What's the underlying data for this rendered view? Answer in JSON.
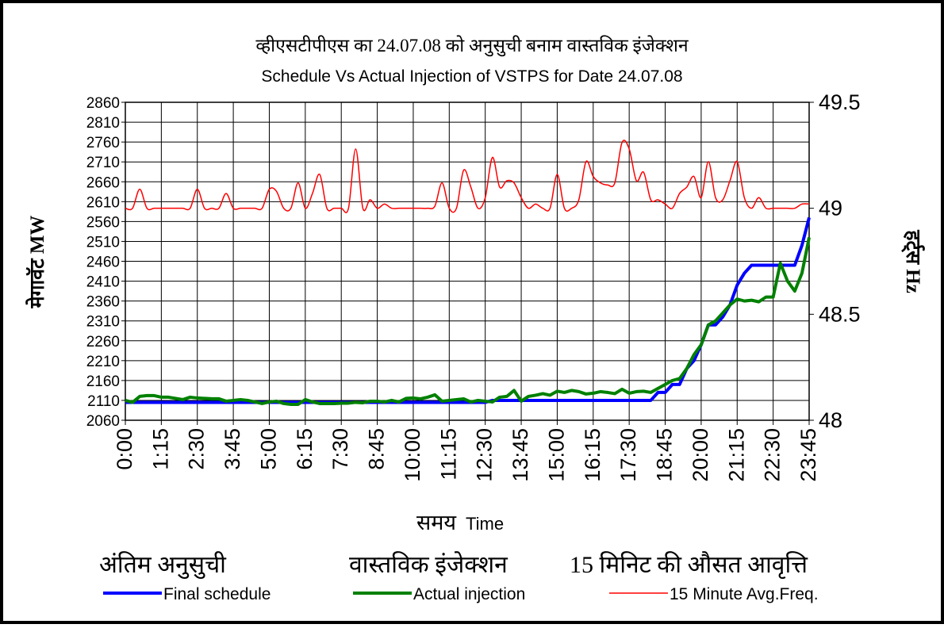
{
  "chart_data": {
    "type": "line",
    "title_hindi": "व्हीएसटीपीएस का 24.07.08 को अनुसुची बनाम वास्तविक इंजेक्शन",
    "title": "Schedule Vs Actual Injection of VSTPS for Date 24.07.08",
    "ylabel": "मेगावॅट  MW",
    "y2label": "हर्ट्स  Hz",
    "xlabel_hindi": "समय",
    "xlabel": "Time",
    "categories": [
      "0:00",
      null,
      null,
      null,
      null,
      "1:15",
      null,
      null,
      null,
      null,
      "2:30",
      null,
      null,
      null,
      null,
      "3:45",
      null,
      null,
      null,
      null,
      "5:00",
      null,
      null,
      null,
      null,
      "6:15",
      null,
      null,
      null,
      null,
      "7:30",
      null,
      null,
      null,
      null,
      "8:45",
      null,
      null,
      null,
      null,
      "10:00",
      null,
      null,
      null,
      null,
      "11:15",
      null,
      null,
      null,
      null,
      "12:30",
      null,
      null,
      null,
      null,
      "13:45",
      null,
      null,
      null,
      null,
      "15:00",
      null,
      null,
      null,
      null,
      "16:15",
      null,
      null,
      null,
      null,
      "17:30",
      null,
      null,
      null,
      null,
      "18:45",
      null,
      null,
      null,
      null,
      "20:00",
      null,
      null,
      null,
      null,
      "21:15",
      null,
      null,
      null,
      null,
      "22:30",
      null,
      null,
      null,
      null,
      "23:45"
    ],
    "ylim": [
      2060,
      2860
    ],
    "yticks": [
      2060,
      2110,
      2160,
      2210,
      2260,
      2310,
      2360,
      2410,
      2460,
      2510,
      2560,
      2610,
      2660,
      2710,
      2760,
      2810,
      2860
    ],
    "y2lim": [
      48,
      49.5
    ],
    "y2ticks": [
      48,
      48.5,
      49,
      49.5
    ],
    "grid": true,
    "legend_position": "bottom",
    "legend_hindi": [
      "अंतिम अनुसुची",
      "वास्तविक इंजेक्शन",
      "15 मिनिट की औसत आवृत्ति"
    ],
    "series": [
      {
        "name": "Final schedule",
        "color": "#0000ff",
        "width": 4,
        "values": [
          2105,
          2105,
          2105,
          2105,
          2105,
          2105,
          2105,
          2105,
          2105,
          2105,
          2105,
          2105,
          2105,
          2105,
          2105,
          2105,
          2105,
          2105,
          2105,
          2105,
          2105,
          2105,
          2105,
          2105,
          2105,
          2105,
          2105,
          2105,
          2105,
          2105,
          2105,
          2105,
          2105,
          2105,
          2105,
          2105,
          2105,
          2105,
          2105,
          2105,
          2105,
          2105,
          2105,
          2105,
          2105,
          2105,
          2105,
          2105,
          2105,
          2105,
          2105,
          2110,
          2110,
          2110,
          2110,
          2110,
          2110,
          2110,
          2110,
          2110,
          2110,
          2110,
          2110,
          2110,
          2110,
          2110,
          2110,
          2110,
          2110,
          2110,
          2110,
          2110,
          2110,
          2110,
          2130,
          2130,
          2150,
          2150,
          2190,
          2210,
          2250,
          2300,
          2300,
          2320,
          2350,
          2400,
          2430,
          2450,
          2450,
          2450,
          2450,
          2450,
          2450,
          2450,
          2500,
          2570
        ]
      },
      {
        "name": "Actual injection",
        "color": "#008000",
        "width": 4,
        "values": [
          2110,
          2105,
          2120,
          2122,
          2122,
          2118,
          2118,
          2115,
          2112,
          2118,
          2116,
          2115,
          2114,
          2114,
          2108,
          2110,
          2112,
          2110,
          2106,
          2102,
          2106,
          2108,
          2102,
          2100,
          2100,
          2112,
          2106,
          2102,
          2102,
          2102,
          2103,
          2103,
          2105,
          2104,
          2108,
          2108,
          2106,
          2110,
          2106,
          2115,
          2116,
          2114,
          2118,
          2124,
          2108,
          2110,
          2112,
          2114,
          2106,
          2110,
          2108,
          2106,
          2118,
          2120,
          2135,
          2108,
          2120,
          2123,
          2127,
          2123,
          2133,
          2130,
          2135,
          2132,
          2126,
          2128,
          2132,
          2130,
          2127,
          2138,
          2128,
          2132,
          2133,
          2130,
          2140,
          2150,
          2160,
          2165,
          2190,
          2225,
          2250,
          2300,
          2310,
          2330,
          2350,
          2365,
          2360,
          2362,
          2358,
          2370,
          2370,
          2455,
          2410,
          2385,
          2430,
          2520
        ]
      },
      {
        "name": "15 Minute Avg.Freq.",
        "color": "#ff0000",
        "width": 1.5,
        "axis": "y2",
        "values": [
          49.0,
          49.0,
          49.09,
          49.0,
          49.0,
          49.0,
          49.0,
          49.0,
          49.0,
          49.0,
          49.09,
          49.0,
          49.0,
          49.0,
          49.07,
          49.0,
          49.0,
          49.0,
          49.0,
          49.0,
          49.09,
          49.08,
          49.0,
          49.0,
          49.12,
          49.0,
          49.07,
          49.16,
          49.0,
          49.0,
          49.0,
          49.0,
          49.28,
          49.0,
          49.04,
          49.0,
          49.02,
          49.0,
          49.0,
          49.0,
          49.0,
          49.0,
          49.0,
          49.01,
          49.12,
          49.0,
          49.0,
          49.18,
          49.1,
          49.0,
          49.05,
          49.24,
          49.1,
          49.13,
          49.12,
          49.05,
          49.0,
          49.02,
          49.0,
          49.0,
          49.16,
          49.0,
          49.0,
          49.04,
          49.22,
          49.15,
          49.12,
          49.11,
          49.12,
          49.31,
          49.28,
          49.13,
          49.17,
          49.04,
          49.04,
          49.02,
          49.0,
          49.07,
          49.1,
          49.15,
          49.05,
          49.22,
          49.05,
          49.04,
          49.13,
          49.22,
          49.05,
          49.0,
          49.05,
          49.0,
          49.0,
          49.0,
          49.0,
          49.0,
          49.02,
          49.02
        ]
      }
    ]
  }
}
